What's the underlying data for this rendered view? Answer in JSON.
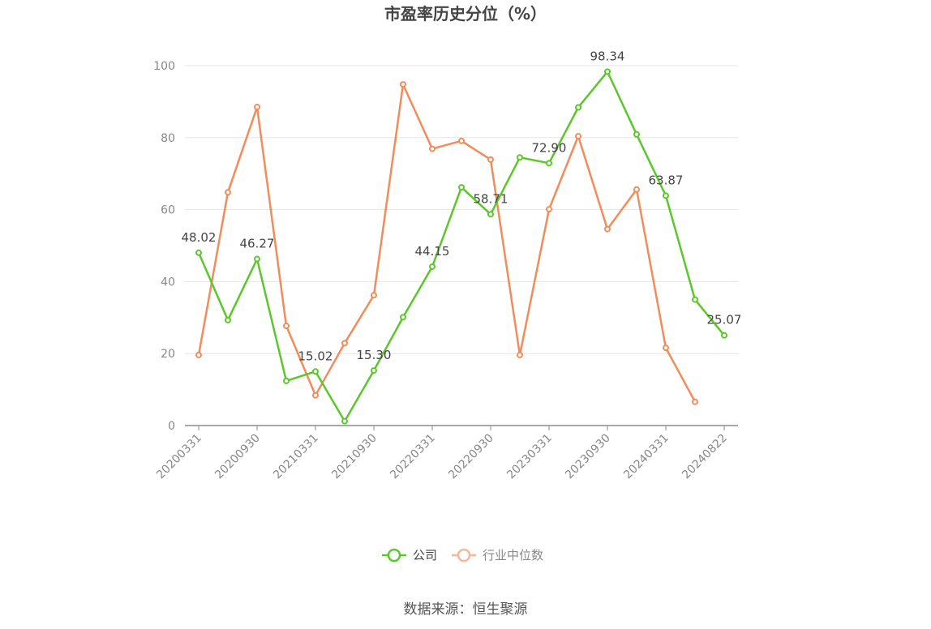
{
  "chart_data": {
    "type": "line",
    "title": "市盈率历史分位（%）",
    "categories": [
      "20200331",
      "20200630",
      "20200930",
      "20201231",
      "20210331",
      "20210630",
      "20210930",
      "20211231",
      "20220331",
      "20220630",
      "20220930",
      "20221231",
      "20230331",
      "20230630",
      "20230930",
      "20231231",
      "20240331",
      "20240630",
      "20240822"
    ],
    "x_tick_labels": [
      "20200331",
      "20200930",
      "20210331",
      "20210930",
      "20220331",
      "20220930",
      "20230331",
      "20230930",
      "20240331",
      "20240822"
    ],
    "y_ticks": [
      0,
      20,
      40,
      60,
      80,
      100
    ],
    "ylim": [
      0,
      100
    ],
    "grid": true,
    "legend_position": "bottom",
    "series": [
      {
        "name": "公司",
        "color": "#5cc72a",
        "values": [
          48.02,
          29.3,
          46.27,
          12.4,
          15.02,
          1.2,
          15.3,
          30.1,
          44.15,
          66.2,
          58.71,
          74.5,
          72.9,
          88.4,
          98.34,
          80.9,
          63.87,
          35.0,
          25.07
        ],
        "labels": [
          "48.02",
          null,
          "46.27",
          null,
          "15.02",
          null,
          "15.30",
          null,
          "44.15",
          null,
          "58.71",
          null,
          "72.90",
          null,
          "98.34",
          null,
          "63.87",
          null,
          "25.07"
        ]
      },
      {
        "name": "行业中位数",
        "color": "#f28c5a",
        "values": [
          19.6,
          64.8,
          88.5,
          27.7,
          8.4,
          22.9,
          36.2,
          94.8,
          76.9,
          79.1,
          73.9,
          19.6,
          60.1,
          80.4,
          54.6,
          65.6,
          21.6,
          6.6,
          null
        ],
        "labels": []
      }
    ]
  },
  "source": "数据来源：恒生聚源"
}
